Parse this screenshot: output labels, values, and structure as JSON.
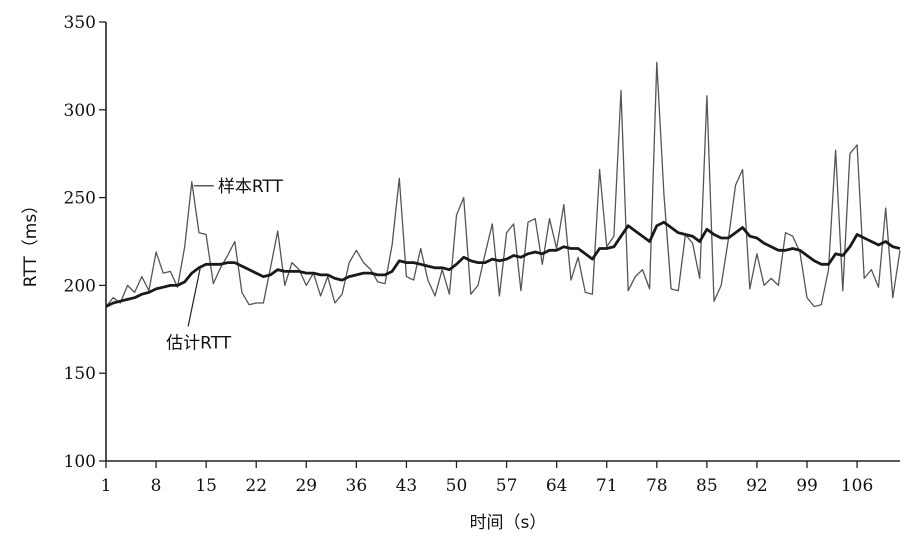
{
  "chart_data": {
    "type": "line",
    "xlabel": "时间（s）",
    "ylabel": "RTT（ms）",
    "xlim": [
      1,
      112
    ],
    "ylim": [
      100,
      350
    ],
    "xticks": [
      1,
      8,
      15,
      22,
      29,
      36,
      43,
      50,
      57,
      64,
      71,
      78,
      85,
      92,
      99,
      106
    ],
    "yticks": [
      100,
      150,
      200,
      250,
      300,
      350
    ],
    "grid": false,
    "annotations": [
      {
        "text": "样本RTT",
        "series": "样本RTT",
        "at_x": 13
      },
      {
        "text": "估计RTT",
        "series": "估计RTT",
        "at_x": 15
      }
    ],
    "series": [
      {
        "name": "样本RTT",
        "x": [
          1,
          2,
          3,
          4,
          5,
          6,
          7,
          8,
          9,
          10,
          11,
          12,
          13,
          14,
          15,
          16,
          17,
          18,
          19,
          20,
          21,
          22,
          23,
          24,
          25,
          26,
          27,
          28,
          29,
          30,
          31,
          32,
          33,
          34,
          35,
          36,
          37,
          38,
          39,
          40,
          41,
          42,
          43,
          44,
          45,
          46,
          47,
          48,
          49,
          50,
          51,
          52,
          53,
          54,
          55,
          56,
          57,
          58,
          59,
          60,
          61,
          62,
          63,
          64,
          65,
          66,
          67,
          68,
          69,
          70,
          71,
          72,
          73,
          74,
          75,
          76,
          77,
          78,
          79,
          80,
          81,
          82,
          83,
          84,
          85,
          86,
          87,
          88,
          89,
          90,
          91,
          92,
          93,
          94,
          95,
          96,
          97,
          98,
          99,
          100,
          101,
          102,
          103,
          104,
          105,
          106,
          107,
          108,
          109,
          110,
          111,
          112
        ],
        "values": [
          188,
          193,
          190,
          200,
          196,
          205,
          197,
          219,
          207,
          208,
          199,
          222,
          259,
          230,
          229,
          201,
          210,
          217,
          225,
          196,
          189,
          190,
          190,
          210,
          231,
          200,
          213,
          209,
          200,
          207,
          194,
          205,
          190,
          195,
          213,
          220,
          213,
          209,
          202,
          201,
          223,
          261,
          205,
          203,
          221,
          203,
          194,
          209,
          195,
          240,
          250,
          195,
          200,
          218,
          235,
          194,
          230,
          235,
          197,
          236,
          238,
          212,
          238,
          221,
          246,
          203,
          216,
          196,
          195,
          266,
          222,
          228,
          311,
          197,
          205,
          209,
          198,
          327,
          252,
          198,
          197,
          229,
          224,
          204,
          308,
          191,
          200,
          226,
          257,
          266,
          198,
          218,
          200,
          204,
          200,
          230,
          228,
          219,
          193,
          188,
          189,
          209,
          277,
          197,
          275,
          280,
          204,
          209,
          199,
          244,
          193,
          220
        ]
      },
      {
        "name": "估计RTT",
        "x": [
          1,
          2,
          3,
          4,
          5,
          6,
          7,
          8,
          9,
          10,
          11,
          12,
          13,
          14,
          15,
          16,
          17,
          18,
          19,
          20,
          21,
          22,
          23,
          24,
          25,
          26,
          27,
          28,
          29,
          30,
          31,
          32,
          33,
          34,
          35,
          36,
          37,
          38,
          39,
          40,
          41,
          42,
          43,
          44,
          45,
          46,
          47,
          48,
          49,
          50,
          51,
          52,
          53,
          54,
          55,
          56,
          57,
          58,
          59,
          60,
          61,
          62,
          63,
          64,
          65,
          66,
          67,
          68,
          69,
          70,
          71,
          72,
          73,
          74,
          75,
          76,
          77,
          78,
          79,
          80,
          81,
          82,
          83,
          84,
          85,
          86,
          87,
          88,
          89,
          90,
          91,
          92,
          93,
          94,
          95,
          96,
          97,
          98,
          99,
          100,
          101,
          102,
          103,
          104,
          105,
          106,
          107,
          108,
          109,
          110,
          111,
          112
        ],
        "values": [
          188,
          190,
          191,
          192,
          193,
          195,
          196,
          198,
          199,
          200,
          200,
          202,
          207,
          210,
          212,
          212,
          212,
          213,
          213,
          211,
          209,
          207,
          205,
          206,
          209,
          208,
          208,
          208,
          207,
          207,
          206,
          206,
          204,
          203,
          205,
          206,
          207,
          207,
          206,
          206,
          208,
          214,
          213,
          213,
          212,
          211,
          210,
          210,
          209,
          212,
          216,
          214,
          213,
          213,
          215,
          214,
          215,
          217,
          216,
          218,
          219,
          218,
          220,
          220,
          222,
          221,
          221,
          218,
          215,
          221,
          221,
          222,
          228,
          234,
          231,
          228,
          225,
          234,
          236,
          233,
          230,
          229,
          228,
          225,
          232,
          229,
          227,
          227,
          230,
          233,
          228,
          227,
          224,
          222,
          220,
          220,
          221,
          220,
          217,
          214,
          212,
          212,
          218,
          217,
          222,
          229,
          227,
          225,
          223,
          225,
          222,
          221
        ]
      }
    ]
  }
}
